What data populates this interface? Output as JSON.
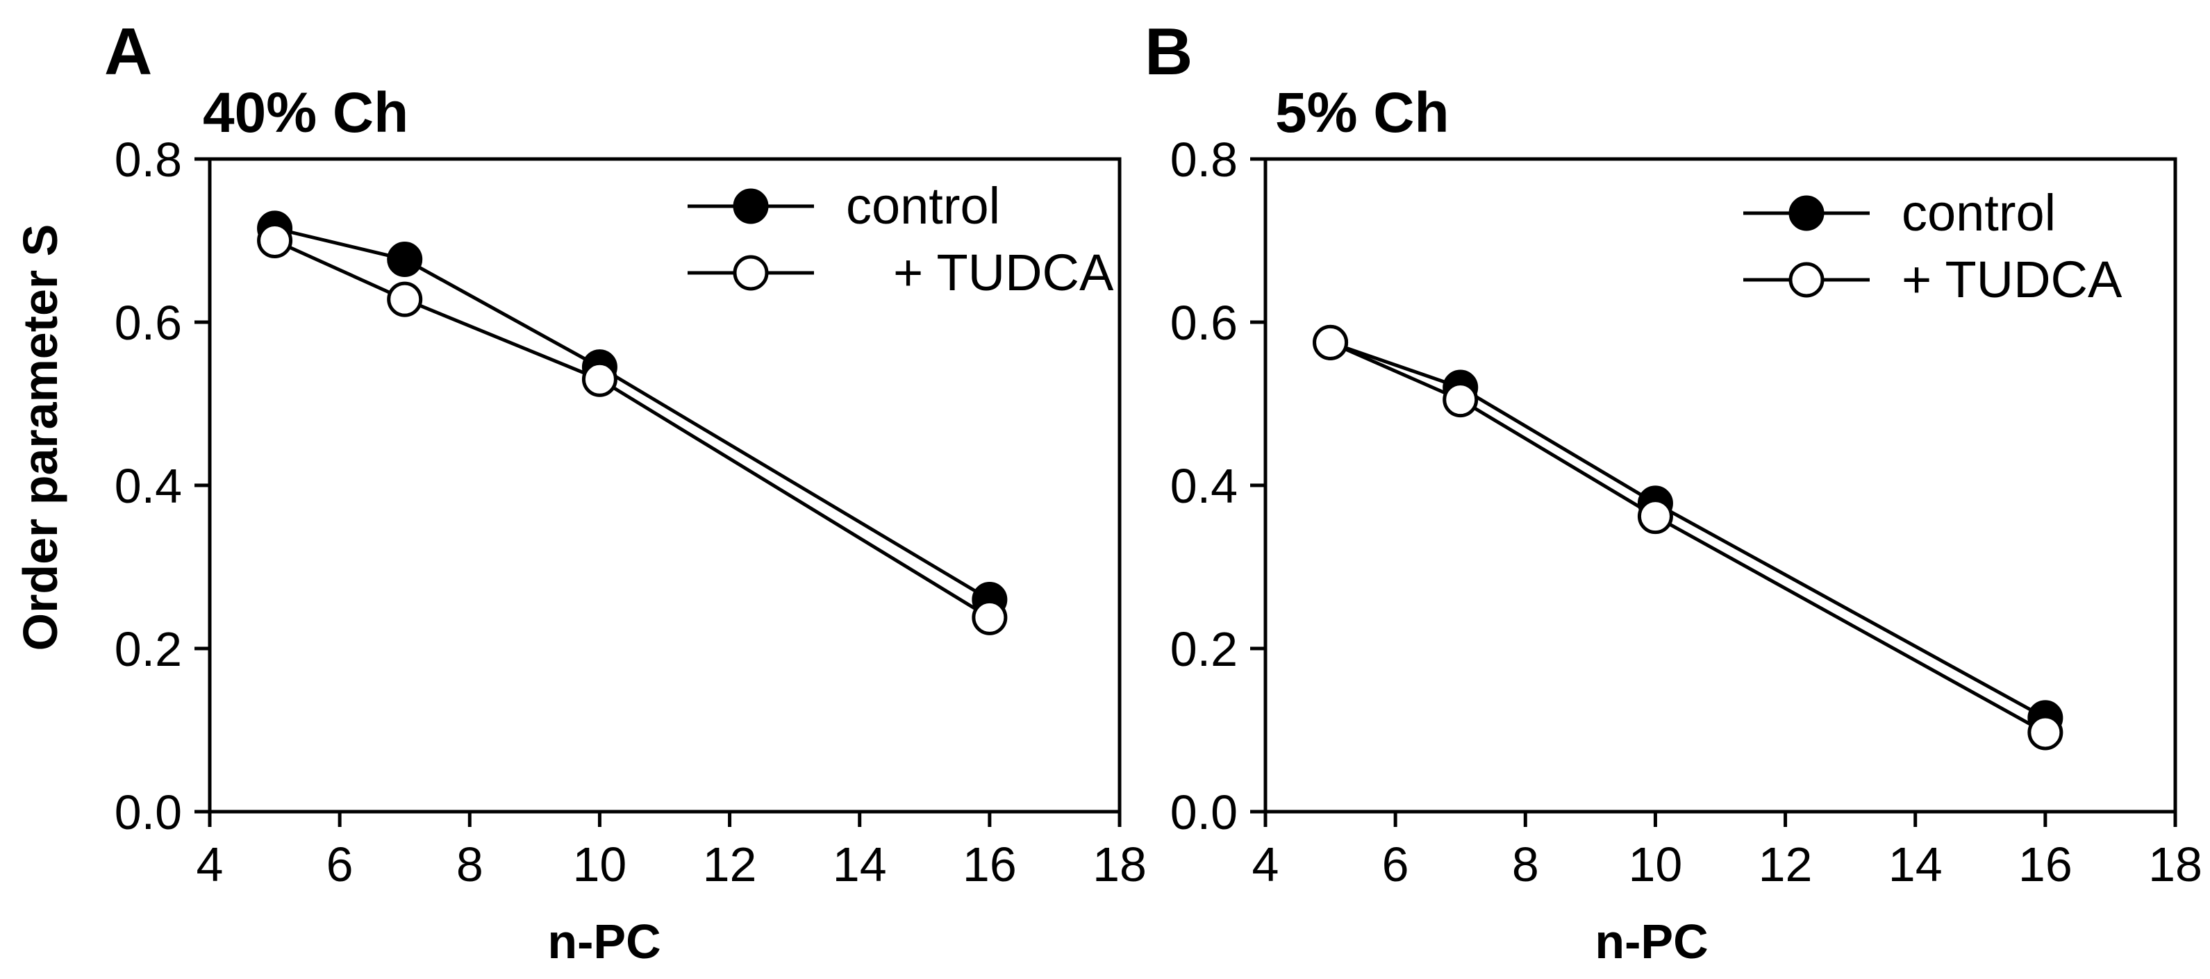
{
  "chart_data": [
    {
      "type": "line",
      "panel_label": "A",
      "title": "40% Ch",
      "xlabel": "n-PC",
      "ylabel": "Order parameter S",
      "xlim": [
        4,
        18
      ],
      "ylim": [
        0.0,
        0.8
      ],
      "xticks": [
        4,
        6,
        8,
        10,
        12,
        14,
        16,
        18
      ],
      "yticks": [
        0.0,
        0.2,
        0.4,
        0.6,
        0.8
      ],
      "xtick_labels": [
        "4",
        "6",
        "8",
        "10",
        "12",
        "14",
        "16",
        "18"
      ],
      "ytick_labels": [
        "0.0",
        "0.2",
        "0.4",
        "0.6",
        "0.8"
      ],
      "grid": false,
      "legend_position": "top-right",
      "series": [
        {
          "name": "control",
          "marker": "filled-circle",
          "x": [
            5,
            7,
            10,
            16
          ],
          "y": [
            0.715,
            0.677,
            0.545,
            0.26
          ]
        },
        {
          "name": "+ TUDCA",
          "marker": "open-circle",
          "x": [
            5,
            7,
            10,
            16
          ],
          "y": [
            0.7,
            0.628,
            0.53,
            0.238
          ]
        }
      ]
    },
    {
      "type": "line",
      "panel_label": "B",
      "title": "5% Ch",
      "xlabel": "n-PC",
      "ylabel": "",
      "xlim": [
        4,
        18
      ],
      "ylim": [
        0.0,
        0.8
      ],
      "xticks": [
        4,
        6,
        8,
        10,
        12,
        14,
        16,
        18
      ],
      "yticks": [
        0.0,
        0.2,
        0.4,
        0.6,
        0.8
      ],
      "xtick_labels": [
        "4",
        "6",
        "8",
        "10",
        "12",
        "14",
        "16",
        "18"
      ],
      "ytick_labels": [
        "0.0",
        "0.2",
        "0.4",
        "0.6",
        "0.8"
      ],
      "grid": false,
      "legend_position": "top-right",
      "series": [
        {
          "name": "control",
          "marker": "filled-circle",
          "x": [
            5,
            7,
            10,
            16
          ],
          "y": [
            0.575,
            0.52,
            0.378,
            0.115
          ]
        },
        {
          "name": "+ TUDCA",
          "marker": "open-circle",
          "x": [
            5,
            7,
            10,
            16
          ],
          "y": [
            0.575,
            0.505,
            0.362,
            0.097
          ]
        }
      ]
    }
  ],
  "colors": {
    "line": "#000000",
    "filled_marker": "#000000",
    "open_marker_fill": "#ffffff"
  }
}
